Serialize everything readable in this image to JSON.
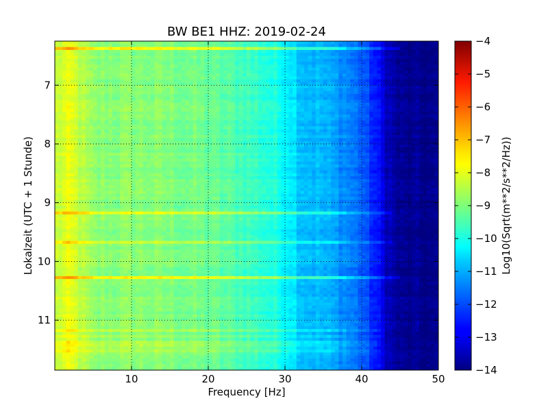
{
  "chart_data": {
    "type": "heatmap",
    "title": "BW BE1 HHZ: 2019-02-24",
    "xlabel": "Frequency [Hz]",
    "ylabel": "Lokalzeit (UTC + 1 Stunde)",
    "xlim": [
      0,
      50
    ],
    "ylim": [
      6.25,
      11.85
    ],
    "y_inverted": true,
    "x_ticks": [
      10,
      20,
      30,
      40,
      50
    ],
    "x_tick_labels": [
      "10",
      "20",
      "30",
      "40",
      "50"
    ],
    "y_ticks": [
      7,
      8,
      9,
      10,
      11
    ],
    "y_tick_labels": [
      "7",
      "8",
      "9",
      "10",
      "11"
    ],
    "grid": true,
    "colormap": "jet",
    "colorbar": {
      "label": "Log10(Sqrt(m**2/s**2/Hz))",
      "range": [
        -14,
        -4
      ],
      "ticks": [
        -4,
        -5,
        -6,
        -7,
        -8,
        -9,
        -10,
        -11,
        -12,
        -13,
        -14
      ],
      "tick_labels": [
        "−4",
        "−5",
        "−6",
        "−7",
        "−8",
        "−9",
        "−10",
        "−11",
        "−12",
        "−13",
        "−14"
      ]
    },
    "spectral_profile": {
      "frequency_hz": [
        0,
        2,
        5,
        10,
        15,
        20,
        25,
        28,
        30,
        31,
        32,
        35,
        38,
        40,
        42,
        43,
        44,
        45,
        50
      ],
      "log10_psd": [
        -8.4,
        -8.0,
        -8.9,
        -8.9,
        -9.0,
        -9.2,
        -9.6,
        -9.9,
        -10.2,
        -10.4,
        -10.8,
        -11.0,
        -11.4,
        -11.8,
        -12.6,
        -13.2,
        -13.6,
        -13.85,
        -13.95
      ]
    },
    "bands": [
      {
        "time": 6.37,
        "level": 1.2,
        "fmax": 45
      },
      {
        "time": 9.19,
        "level": 0.9,
        "fmax": 44
      },
      {
        "time": 9.67,
        "level": 0.6,
        "fmax": 44
      },
      {
        "time": 10.28,
        "level": 1.2,
        "fmax": 45
      },
      {
        "time": 11.17,
        "level": 0.5,
        "fmax": 43
      },
      {
        "time": 11.28,
        "level": 0.4,
        "fmax": 43
      },
      {
        "time": 11.4,
        "level": 0.4,
        "fmax": 42
      },
      {
        "time": 11.5,
        "level": 0.35,
        "fmax": 42
      }
    ]
  }
}
